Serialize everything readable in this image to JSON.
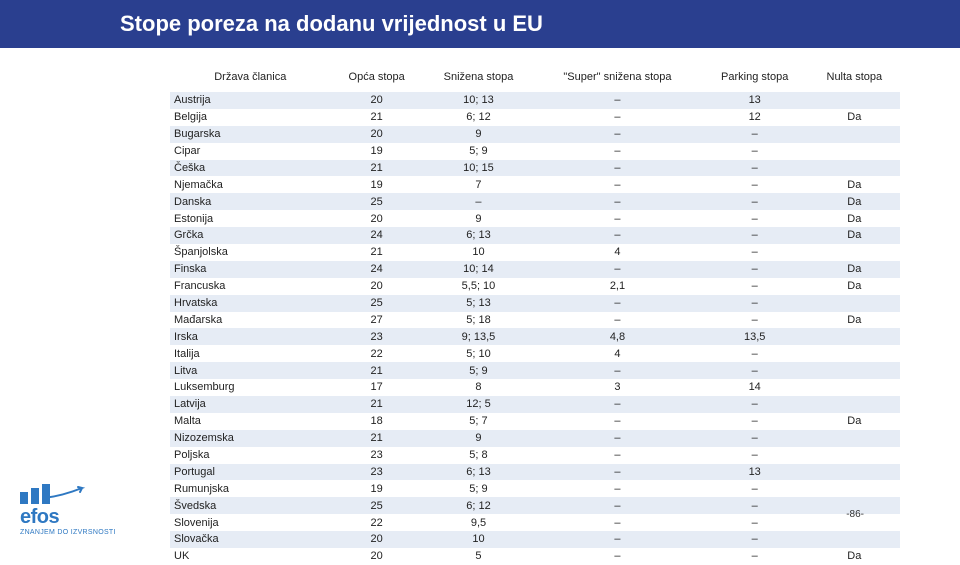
{
  "title": "Stope poreza na dodanu vrijednost u EU",
  "page_number": "-86-",
  "logo": {
    "name": "efos",
    "tagline": "ZNANJEM DO IZVRSNOSTI"
  },
  "table": {
    "columns": [
      "Država članica",
      "Opća stopa",
      "Snižena stopa",
      "\"Super\" snižena stopa",
      "Parking stopa",
      "Nulta stopa"
    ],
    "rows": [
      [
        "Austrija",
        "20",
        "10; 13",
        "–",
        "13",
        ""
      ],
      [
        "Belgija",
        "21",
        "6; 12",
        "–",
        "12",
        "Da"
      ],
      [
        "Bugarska",
        "20",
        "9",
        "–",
        "–",
        ""
      ],
      [
        "Cipar",
        "19",
        "5; 9",
        "–",
        "–",
        ""
      ],
      [
        "Češka",
        "21",
        "10; 15",
        "–",
        "–",
        ""
      ],
      [
        "Njemačka",
        "19",
        "7",
        "–",
        "–",
        "Da"
      ],
      [
        "Danska",
        "25",
        "–",
        "–",
        "–",
        "Da"
      ],
      [
        "Estonija",
        "20",
        "9",
        "–",
        "–",
        "Da"
      ],
      [
        "Grčka",
        "24",
        "6; 13",
        "–",
        "–",
        "Da"
      ],
      [
        "Španjolska",
        "21",
        "10",
        "4",
        "–",
        ""
      ],
      [
        "Finska",
        "24",
        "10; 14",
        "–",
        "–",
        "Da"
      ],
      [
        "Francuska",
        "20",
        "5,5; 10",
        "2,1",
        "–",
        "Da"
      ],
      [
        "Hrvatska",
        "25",
        "5; 13",
        "–",
        "–",
        ""
      ],
      [
        "Mađarska",
        "27",
        "5; 18",
        "–",
        "–",
        "Da"
      ],
      [
        "Irska",
        "23",
        "9; 13,5",
        "4,8",
        "13,5",
        ""
      ],
      [
        "Italija",
        "22",
        "5; 10",
        "4",
        "–",
        ""
      ],
      [
        "Litva",
        "21",
        "5; 9",
        "–",
        "–",
        ""
      ],
      [
        "Luksemburg",
        "17",
        "8",
        "3",
        "14",
        ""
      ],
      [
        "Latvija",
        "21",
        "12; 5",
        "–",
        "–",
        ""
      ],
      [
        "Malta",
        "18",
        "5; 7",
        "–",
        "–",
        "Da"
      ],
      [
        "Nizozemska",
        "21",
        "9",
        "–",
        "–",
        ""
      ],
      [
        "Poljska",
        "23",
        "5; 8",
        "–",
        "–",
        ""
      ],
      [
        "Portugal",
        "23",
        "6; 13",
        "–",
        "13",
        ""
      ],
      [
        "Rumunjska",
        "19",
        "5; 9",
        "–",
        "–",
        ""
      ],
      [
        "Švedska",
        "25",
        "6; 12",
        "–",
        "–",
        ""
      ],
      [
        "Slovenija",
        "22",
        "9,5",
        "–",
        "–",
        ""
      ],
      [
        "Slovačka",
        "20",
        "10",
        "–",
        "–",
        ""
      ],
      [
        "UK",
        "20",
        "5",
        "–",
        "–",
        "Da"
      ]
    ]
  },
  "colors": {
    "header_bg": "#2a3f8f",
    "row_stripe": "#e6ecf5",
    "logo": "#2e78c2"
  }
}
